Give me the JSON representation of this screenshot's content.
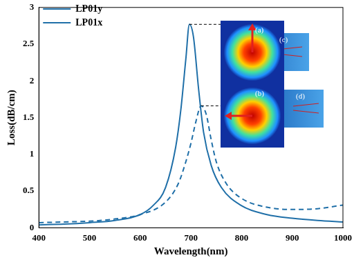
{
  "chart_data": {
    "type": "line",
    "x_label": "Wavelength(nm)",
    "y_label": "Loss(dB/cm)",
    "xlim": [
      400,
      1000
    ],
    "xticks": [
      400,
      500,
      600,
      700,
      800,
      900,
      1000
    ],
    "ylim": [
      0,
      3
    ],
    "yticks": [
      0,
      0.5,
      1,
      1.5,
      2,
      2.5,
      3
    ],
    "grid": false,
    "legend": "upper left",
    "annotations": [
      "(a)",
      "(b)",
      "(c)",
      "(d)"
    ],
    "series": [
      {
        "name": "LP01y",
        "color": "#1f6fa8",
        "line_style": "solid",
        "x": [
          400,
          450,
          500,
          550,
          600,
          625,
          650,
          670,
          680,
          690,
          697,
          705,
          715,
          725,
          740,
          760,
          800,
          850,
          900,
          950,
          1000
        ],
        "values": [
          0.04,
          0.05,
          0.07,
          0.1,
          0.18,
          0.3,
          0.55,
          1.1,
          1.6,
          2.3,
          2.77,
          2.6,
          1.9,
          1.3,
          0.85,
          0.55,
          0.3,
          0.18,
          0.13,
          0.1,
          0.08
        ]
      },
      {
        "name": "LP01x",
        "color": "#1f6fa8",
        "line_style": "dashed",
        "x": [
          400,
          450,
          500,
          550,
          600,
          650,
          675,
          690,
          700,
          710,
          720,
          730,
          740,
          750,
          770,
          800,
          850,
          900,
          950,
          1000
        ],
        "values": [
          0.07,
          0.08,
          0.09,
          0.12,
          0.18,
          0.35,
          0.6,
          0.9,
          1.15,
          1.45,
          1.66,
          1.55,
          1.2,
          0.9,
          0.6,
          0.4,
          0.28,
          0.25,
          0.26,
          0.31
        ]
      }
    ]
  }
}
